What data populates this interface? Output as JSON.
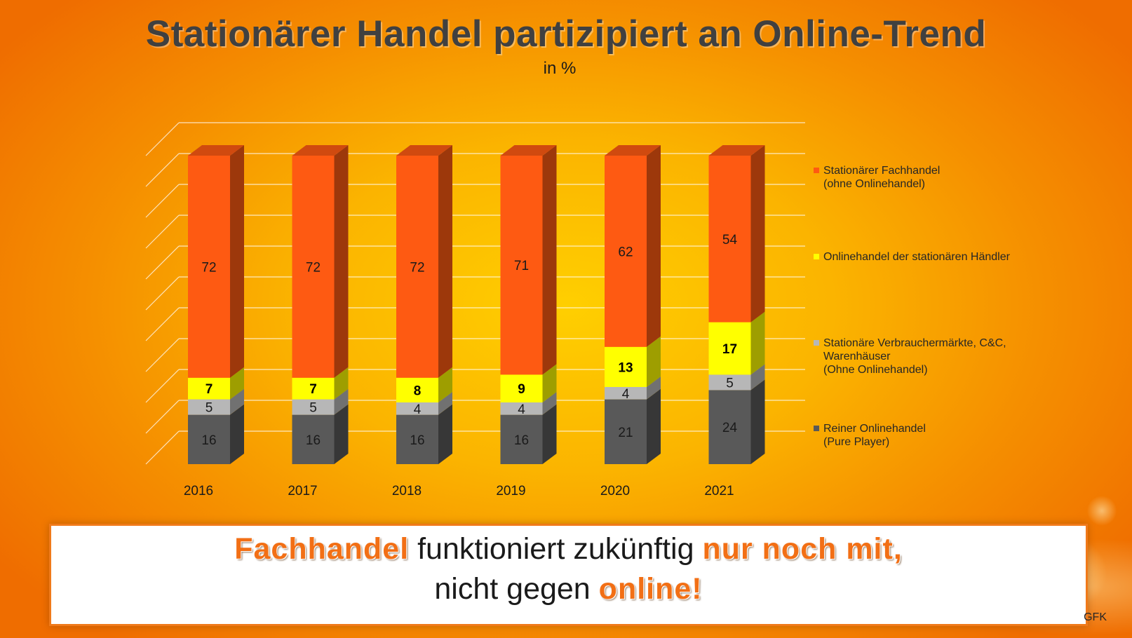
{
  "title": "Stationärer Handel partizipiert an Online-Trend",
  "subtitle": "in %",
  "chart_data": {
    "type": "bar",
    "stacked": true,
    "three_d": true,
    "categories": [
      "2016",
      "2017",
      "2018",
      "2019",
      "2020",
      "2021"
    ],
    "ylim": [
      0,
      100
    ],
    "grid": true,
    "legend_position": "right",
    "series": [
      {
        "name": "Reiner Onlinehandel\n(Pure Player)",
        "color": "#595959",
        "label_color": "#1a1a1a",
        "bold": false,
        "values": [
          16,
          16,
          16,
          16,
          21,
          24
        ]
      },
      {
        "name": "Stationäre Verbrauchermärkte, C&C,\nWarenhäuser\n(Ohne Onlinehandel)",
        "color": "#b7b7b7",
        "label_color": "#1a1a1a",
        "bold": false,
        "values": [
          5,
          5,
          4,
          4,
          4,
          5
        ]
      },
      {
        "name": "Onlinehandel der stationären Händler",
        "color": "#ffff00",
        "label_color": "#000000",
        "bold": true,
        "values": [
          7,
          7,
          8,
          9,
          13,
          17
        ]
      },
      {
        "name": "Stationärer Fachhandel\n(ohne Onlinehandel)",
        "color": "#fe5a12",
        "label_color": "#1a1a1a",
        "bold": false,
        "values": [
          72,
          72,
          72,
          71,
          62,
          54
        ]
      }
    ]
  },
  "banner": {
    "line1": [
      {
        "text": "Fachhandel",
        "highlight": true
      },
      {
        "text": " funktioniert zukünftig ",
        "highlight": false
      },
      {
        "text": "nur noch mit,",
        "highlight": true
      }
    ],
    "line2": [
      {
        "text": "nicht gegen ",
        "highlight": false
      },
      {
        "text": "online!",
        "highlight": true
      }
    ]
  },
  "source": "GFK"
}
